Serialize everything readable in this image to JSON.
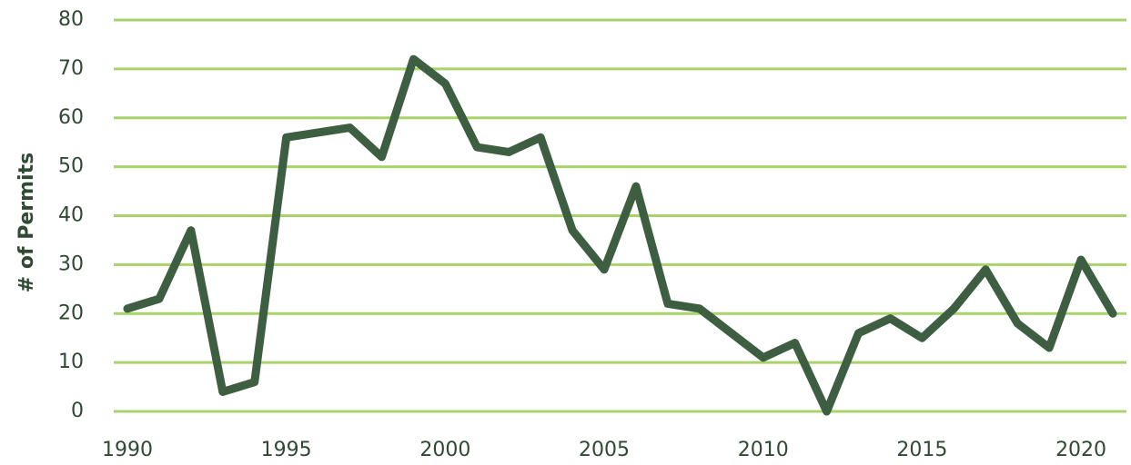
{
  "chart_data": {
    "type": "line",
    "y_label": "# of Permits",
    "x": [
      1990,
      1991,
      1992,
      1993,
      1994,
      1995,
      1996,
      1997,
      1998,
      1999,
      2000,
      2001,
      2002,
      2003,
      2004,
      2005,
      2006,
      2007,
      2008,
      2009,
      2010,
      2011,
      2012,
      2013,
      2014,
      2015,
      2016,
      2017,
      2018,
      2019,
      2020,
      2021
    ],
    "values": [
      21,
      23,
      37,
      4,
      6,
      56,
      57,
      58,
      52,
      72,
      67,
      54,
      53,
      56,
      37,
      29,
      46,
      22,
      21,
      16,
      11,
      14,
      0,
      16,
      19,
      15,
      21,
      29,
      18,
      13,
      31,
      20
    ],
    "color": "#3d5e41",
    "grid": true,
    "grid_color": "#a8d36b",
    "xlim": [
      1990,
      2021
    ],
    "xticks": [
      1990,
      1995,
      2000,
      2005,
      2010,
      2015,
      2020
    ],
    "ylim": [
      0,
      80
    ],
    "yticks": [
      0,
      10,
      20,
      30,
      40,
      50,
      60,
      70,
      80
    ]
  }
}
